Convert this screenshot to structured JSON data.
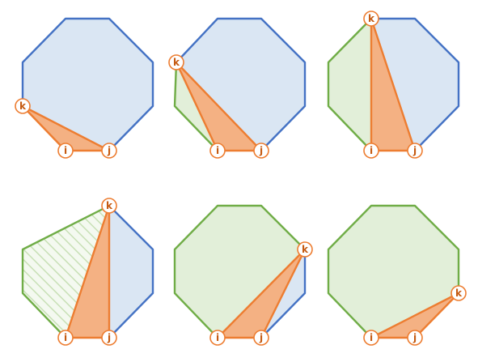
{
  "colors": {
    "blue_stroke": "#4472c4",
    "blue_fill": "#dae6f3",
    "green_stroke": "#70ad47",
    "green_fill": "#e2efd9",
    "orange_stroke": "#ed7d31",
    "orange_fill": "#f4b183",
    "label_text": "#c55a11",
    "label_bg": "#ffffff"
  },
  "labels": {
    "i": "i",
    "j": "j",
    "k": "k"
  },
  "panels": [
    {
      "id": "panel-1",
      "k_vertex": 6,
      "blue_region": "k-to-j",
      "green_region": "none"
    },
    {
      "id": "panel-2",
      "k_vertex": 7,
      "blue_region": "k-to-j",
      "green_region": "i-to-k"
    },
    {
      "id": "panel-3",
      "k_vertex": 0,
      "blue_region": "k-to-j",
      "green_region": "i-to-k"
    },
    {
      "id": "panel-4",
      "k_vertex": 0,
      "blue_region": "k-to-j",
      "green_region": "i-to-k-hatched"
    },
    {
      "id": "panel-5",
      "k_vertex": 2,
      "blue_region": "k-to-j",
      "green_region": "i-to-k"
    },
    {
      "id": "panel-6",
      "k_vertex": 3,
      "blue_region": "none",
      "green_region": "i-to-k"
    }
  ]
}
